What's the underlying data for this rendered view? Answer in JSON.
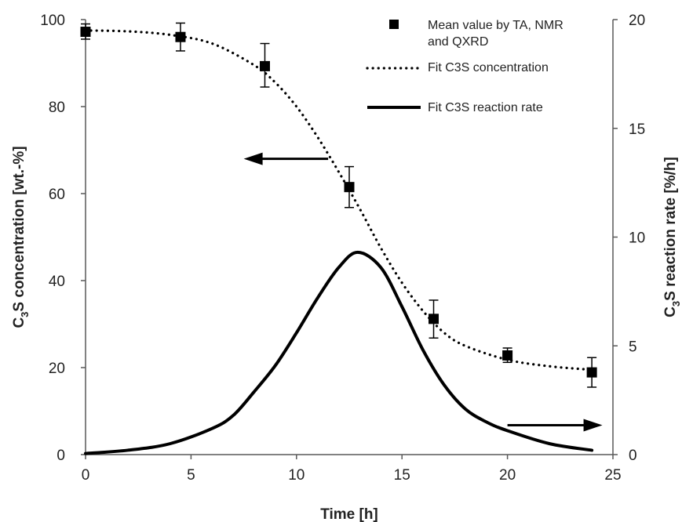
{
  "chart_data": {
    "type": "line",
    "xlabel": "Time [h]",
    "ylabel_left": {
      "base": "C",
      "sub": "3",
      "rest": "S concentration [wt.-%]"
    },
    "ylabel_right": {
      "base": "C",
      "sub": "3",
      "rest": "S reaction rate [%/h]"
    },
    "xlim": [
      0,
      25
    ],
    "ylim_left": [
      0,
      100
    ],
    "ylim_right": [
      0,
      20
    ],
    "x_ticks": [
      "0",
      "5",
      "10",
      "15",
      "20",
      "25"
    ],
    "y_left_ticks": [
      "0",
      "20",
      "40",
      "60",
      "80",
      "100"
    ],
    "y_right_ticks": [
      "0",
      "5",
      "10",
      "15",
      "20"
    ],
    "grid": false,
    "legend_position": "top-right",
    "legend": [
      {
        "label_lines": [
          "Mean value by TA, NMR",
          "and QXRD"
        ],
        "marker": "square"
      },
      {
        "label_lines": [
          "Fit C3S concentration"
        ],
        "marker": "dotted-line"
      },
      {
        "label_lines": [
          "Fit C3S reaction rate"
        ],
        "marker": "solid-line"
      }
    ],
    "series": [
      {
        "name": "Mean value by TA, NMR and QXRD",
        "axis": "left",
        "style": "markers",
        "x": [
          0,
          4.5,
          8.5,
          12.5,
          16.5,
          20,
          24
        ],
        "y": [
          97.2,
          96.0,
          89.3,
          61.5,
          31.2,
          22.8,
          18.9
        ],
        "err_low": [
          95.5,
          92.8,
          84.5,
          56.8,
          26.8,
          21.2,
          15.5
        ],
        "err_high": [
          99.0,
          99.2,
          94.5,
          66.2,
          35.5,
          24.5,
          22.3
        ]
      },
      {
        "name": "Fit C3S concentration",
        "axis": "left",
        "style": "dotted",
        "x": [
          0,
          2,
          4,
          6,
          8,
          9,
          10,
          11,
          12,
          13,
          14,
          15,
          16,
          17,
          18,
          20,
          22,
          24
        ],
        "y": [
          97.5,
          97.3,
          96.5,
          94.5,
          89.5,
          85.5,
          80.0,
          73.0,
          65.0,
          56.5,
          47.5,
          39.5,
          33.0,
          28.0,
          25.0,
          21.8,
          20.3,
          19.5
        ]
      },
      {
        "name": "Fit C3S reaction rate",
        "axis": "right",
        "style": "solid",
        "x": [
          0,
          2,
          4,
          6,
          7,
          8,
          9,
          10,
          11,
          12,
          12.9,
          14,
          15,
          16,
          17,
          18,
          19,
          20,
          22,
          24
        ],
        "y": [
          0.05,
          0.2,
          0.5,
          1.2,
          1.8,
          2.9,
          4.1,
          5.6,
          7.2,
          8.6,
          9.3,
          8.6,
          6.8,
          4.8,
          3.2,
          2.1,
          1.5,
          1.1,
          0.5,
          0.2
        ]
      }
    ],
    "annotations": [
      {
        "type": "arrow",
        "direction": "left",
        "axis": "left",
        "x_from": 11.5,
        "x_to": 7.5,
        "y": 68
      },
      {
        "type": "arrow",
        "direction": "right",
        "axis": "right",
        "x_from": 20.0,
        "x_to": 24.5,
        "y": 1.35
      }
    ]
  }
}
